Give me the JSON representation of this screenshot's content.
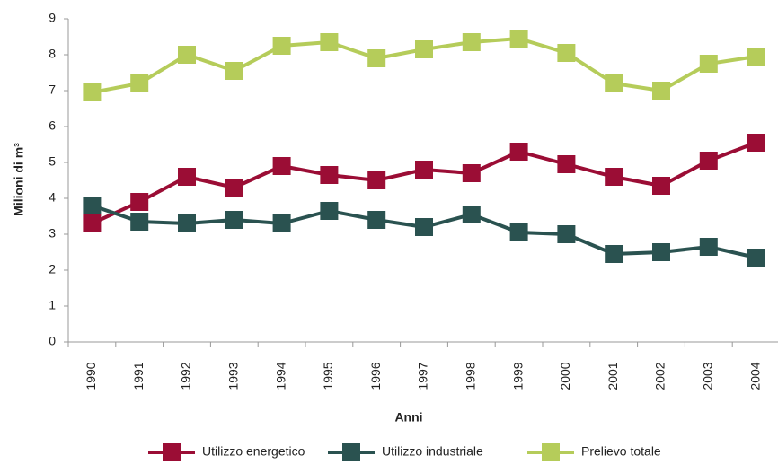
{
  "chart_data": {
    "type": "line",
    "y_label": "Milioni di m³",
    "x_label": "Anni",
    "categories": [
      "1990",
      "1991",
      "1992",
      "1993",
      "1994",
      "1995",
      "1996",
      "1997",
      "1998",
      "1999",
      "2000",
      "2001",
      "2002",
      "2003",
      "2004"
    ],
    "series": [
      {
        "name": "Utilizzo energetico",
        "color": "#9b0d35",
        "values": [
          3.3,
          3.9,
          4.6,
          4.3,
          4.9,
          4.65,
          4.5,
          4.8,
          4.7,
          5.3,
          4.95,
          4.6,
          4.35,
          5.05,
          5.55
        ]
      },
      {
        "name": "Utilizzo industriale",
        "color": "#2a5250",
        "values": [
          3.8,
          3.35,
          3.3,
          3.4,
          3.3,
          3.65,
          3.4,
          3.2,
          3.55,
          3.05,
          3.0,
          2.45,
          2.5,
          2.65,
          2.35
        ]
      },
      {
        "name": "Prelievo totale",
        "color": "#b5cc5a",
        "values": [
          6.95,
          7.2,
          8.0,
          7.55,
          8.25,
          8.35,
          7.9,
          8.15,
          8.35,
          8.45,
          8.05,
          7.2,
          7.0,
          7.75,
          7.95
        ]
      }
    ],
    "ylim": [
      0,
      9
    ],
    "yticks": [
      0,
      1,
      2,
      3,
      4,
      5,
      6,
      7,
      8,
      9
    ],
    "legend": "bottom"
  }
}
